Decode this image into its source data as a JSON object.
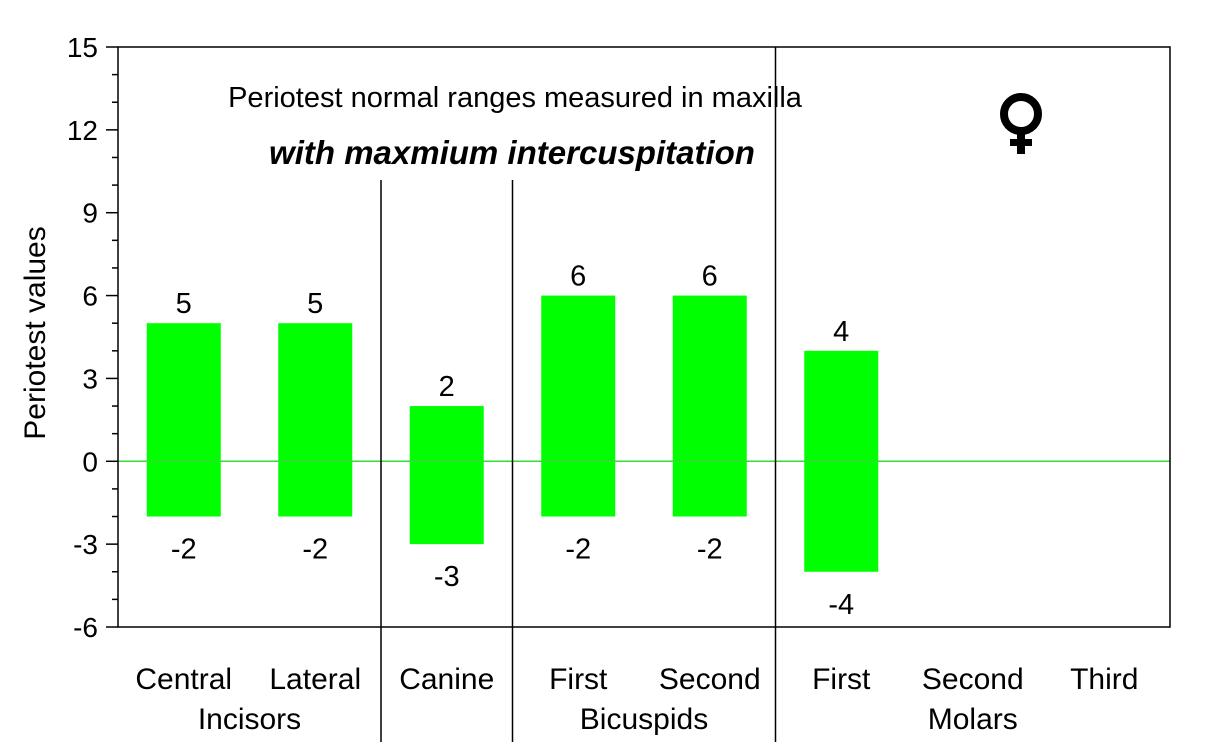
{
  "chart_data": {
    "type": "bar",
    "subtype": "floating-range",
    "title": "Periotest normal ranges measured in maxilla",
    "subtitle": "with maxmium intercuspitation",
    "ylabel": "Periotest values",
    "xlabel": "",
    "ylim": [
      -6,
      15
    ],
    "yticks": [
      -6,
      -3,
      0,
      3,
      6,
      9,
      12,
      15
    ],
    "categories": [
      "Central",
      "Lateral",
      "Canine",
      "First",
      "Second",
      "First",
      "Second",
      "Third"
    ],
    "groups": [
      {
        "label": "Incisors",
        "span": [
          0,
          1
        ]
      },
      {
        "label": "",
        "span": [
          2,
          2
        ]
      },
      {
        "label": "Bicuspids",
        "span": [
          3,
          4
        ]
      },
      {
        "label": "Molars",
        "span": [
          5,
          7
        ]
      }
    ],
    "series": [
      {
        "low": [
          -2,
          -2,
          -3,
          -2,
          -2,
          -4,
          null,
          null
        ],
        "high": [
          5,
          5,
          2,
          6,
          6,
          4,
          null,
          null
        ]
      }
    ],
    "grid": false,
    "zero_line": true,
    "colors": {
      "bar": "#00ff00",
      "zero_line": "#33dd33",
      "subtitle": "#e00000",
      "axis": "#000000"
    },
    "symbol_icon": "female-symbol-icon"
  }
}
